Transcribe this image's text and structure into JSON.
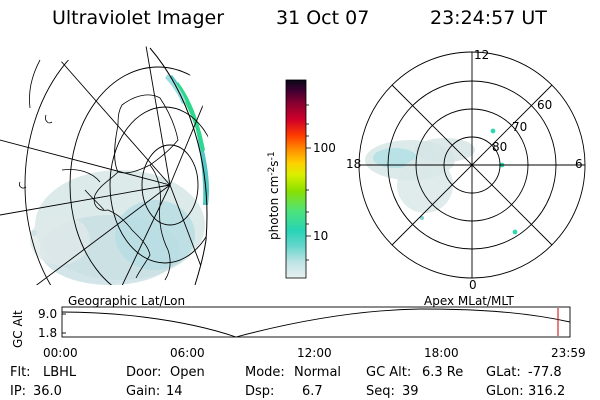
{
  "header": {
    "title": "Ultraviolet Imager",
    "date": "31 Oct 07",
    "time": "23:24:57 UT"
  },
  "colorbar": {
    "unit_label": "photon cm",
    "unit_exp1": "-2",
    "unit_mid": "s",
    "unit_exp2": "-1",
    "ticks": [
      "100",
      "10"
    ]
  },
  "polar": {
    "mlt_labels": [
      "12",
      "6",
      "0",
      "18"
    ],
    "lat_labels": [
      "60",
      "70",
      "80"
    ]
  },
  "panels": {
    "left_caption": "Geographic Lat/Lon",
    "right_caption": "Apex  MLat/MLT"
  },
  "alt_plot": {
    "ylabel": "GC Alt",
    "yticks": [
      "9.0",
      "1.8"
    ],
    "xticks": [
      "00:00",
      "06:00",
      "12:00",
      "18:00",
      "23:59"
    ],
    "marker_color": "#cc0000"
  },
  "footer": {
    "row1": [
      {
        "label": "Flt:",
        "value": "LBHL"
      },
      {
        "label": "Door:",
        "value": "Open"
      },
      {
        "label": "Mode:",
        "value": "Normal"
      },
      {
        "label": "GC Alt:",
        "value": "6.3 Re"
      },
      {
        "label": "GLat:",
        "value": "-77.8"
      }
    ],
    "row2": [
      {
        "label": "IP:",
        "value": "36.0"
      },
      {
        "label": "Gain:",
        "value": "14"
      },
      {
        "label": "Dsp:",
        "value": "6.7"
      },
      {
        "label": "Seq:",
        "value": "39"
      },
      {
        "label": "GLon:",
        "value": "316.2"
      }
    ]
  }
}
